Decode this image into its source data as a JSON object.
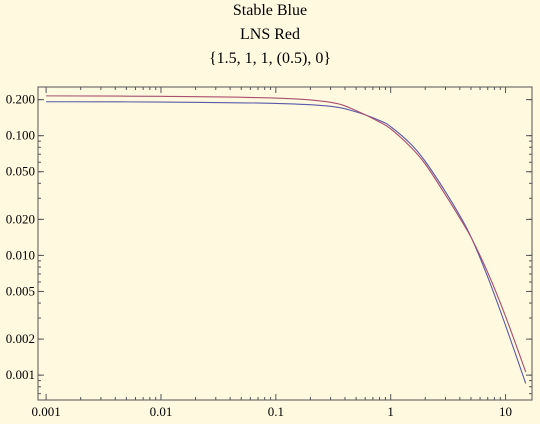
{
  "chart_data": {
    "type": "line",
    "title_lines": [
      "Stable Blue",
      "LNS Red",
      "{1.5, 1, 1, (0.5), 0}"
    ],
    "xlabel": "",
    "ylabel": "",
    "x_scale": "log",
    "y_scale": "log",
    "xlim": [
      0.00085,
      17
    ],
    "ylim": [
      0.00062,
      0.255
    ],
    "x_ticks": [
      0.001,
      0.01,
      0.1,
      1,
      10
    ],
    "x_tick_labels": [
      "0.001",
      "0.01",
      "0.1",
      "1",
      "10"
    ],
    "y_ticks": [
      0.2,
      0.1,
      0.05,
      0.02,
      0.01,
      0.005,
      0.002,
      0.001
    ],
    "y_tick_labels": [
      "0.200",
      "0.100",
      "0.050",
      "0.020",
      "0.010",
      "0.005",
      "0.002",
      "0.001"
    ],
    "grid": false,
    "background": "#fff9e0",
    "series": [
      {
        "color": "#5a5aa8",
        "x": [
          0.001,
          0.01,
          0.1,
          0.3,
          0.5,
          0.8,
          1.0,
          1.5,
          2.0,
          3.0,
          4.0,
          5.0,
          7.0,
          10.0,
          15.0
        ],
        "y": [
          0.192,
          0.191,
          0.186,
          0.176,
          0.158,
          0.134,
          0.119,
          0.085,
          0.061,
          0.034,
          0.0215,
          0.0143,
          0.0066,
          0.0026,
          0.00085
        ]
      },
      {
        "color": "#a8506e",
        "x": [
          0.001,
          0.01,
          0.1,
          0.3,
          0.5,
          0.8,
          1.0,
          1.5,
          2.0,
          3.0,
          4.0,
          5.0,
          7.0,
          10.0,
          15.0
        ],
        "y": [
          0.215,
          0.213,
          0.206,
          0.19,
          0.162,
          0.13,
          0.114,
          0.08,
          0.058,
          0.032,
          0.0205,
          0.0142,
          0.0072,
          0.0031,
          0.00106
        ]
      }
    ]
  }
}
